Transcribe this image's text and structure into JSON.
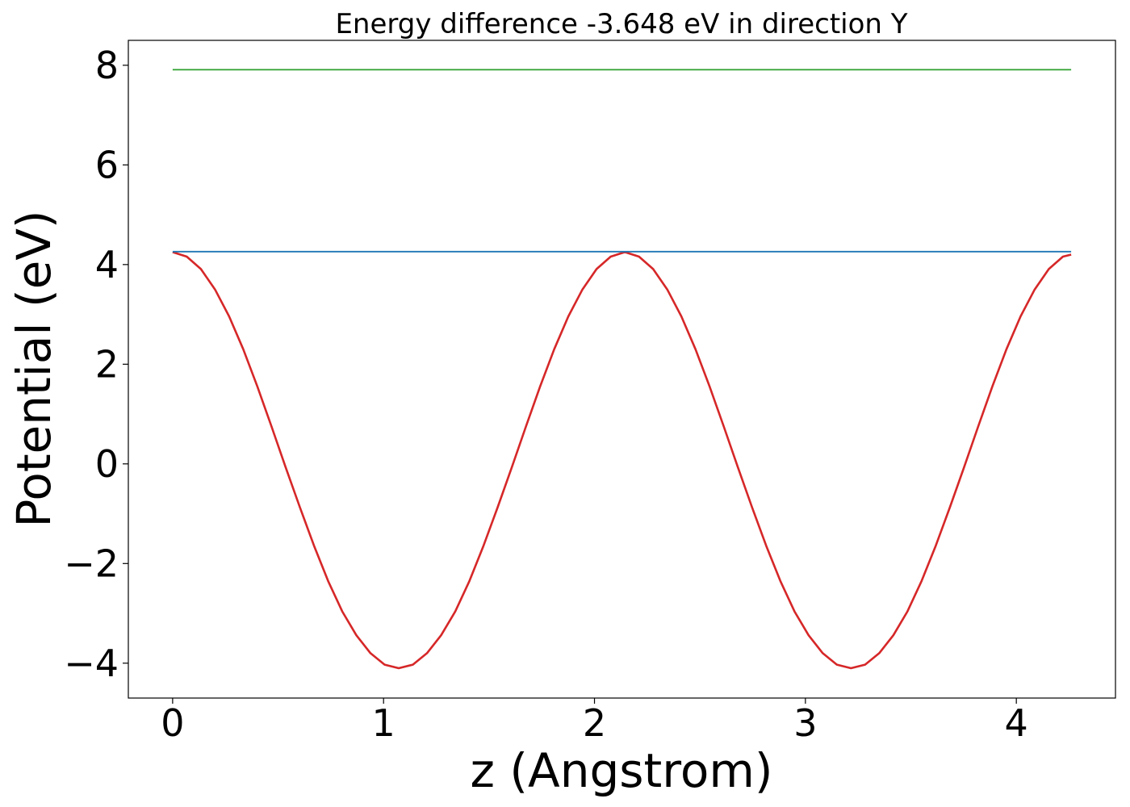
{
  "chart_data": {
    "type": "line",
    "title": "Energy difference -3.648 eV in direction Y",
    "xlabel": "z (Angstrom)",
    "ylabel": "Potential (eV)",
    "xlim": [
      -0.21,
      4.47
    ],
    "ylim": [
      -4.7,
      8.5
    ],
    "xticks": [
      0,
      1,
      2,
      3,
      4
    ],
    "xtick_labels": [
      "0",
      "1",
      "2",
      "3",
      "4"
    ],
    "yticks": [
      -4,
      -2,
      0,
      2,
      4,
      6,
      8
    ],
    "ytick_labels": [
      "−4",
      "−2",
      "0",
      "2",
      "4",
      "6",
      "8"
    ],
    "grid": false,
    "series": [
      {
        "color": "#d62728",
        "x": [
          0.0,
          0.067,
          0.134,
          0.201,
          0.268,
          0.335,
          0.402,
          0.469,
          0.536,
          0.603,
          0.67,
          0.737,
          0.804,
          0.871,
          0.938,
          1.005,
          1.072,
          1.139,
          1.206,
          1.273,
          1.34,
          1.407,
          1.474,
          1.541,
          1.608,
          1.675,
          1.742,
          1.809,
          1.876,
          1.943,
          2.01,
          2.077,
          2.144,
          2.211,
          2.278,
          2.345,
          2.412,
          2.479,
          2.546,
          2.613,
          2.68,
          2.747,
          2.814,
          2.881,
          2.948,
          3.015,
          3.082,
          3.149,
          3.216,
          3.283,
          3.35,
          3.417,
          3.484,
          3.551,
          3.618,
          3.685,
          3.752,
          3.819,
          3.886,
          3.953,
          4.02,
          4.087,
          4.154,
          4.221,
          4.26
        ],
        "y": [
          4.25,
          4.16,
          3.91,
          3.5,
          2.96,
          2.3,
          1.55,
          0.75,
          -0.07,
          -0.87,
          -1.64,
          -2.35,
          -2.96,
          -3.44,
          -3.8,
          -4.03,
          -4.1,
          -4.03,
          -3.8,
          -3.44,
          -2.96,
          -2.35,
          -1.64,
          -0.87,
          -0.07,
          0.75,
          1.55,
          2.3,
          2.96,
          3.5,
          3.91,
          4.16,
          4.25,
          4.16,
          3.91,
          3.5,
          2.96,
          2.3,
          1.55,
          0.75,
          -0.07,
          -0.87,
          -1.64,
          -2.35,
          -2.96,
          -3.44,
          -3.8,
          -4.03,
          -4.1,
          -4.03,
          -3.8,
          -3.44,
          -2.96,
          -2.35,
          -1.64,
          -0.87,
          -0.07,
          0.75,
          1.55,
          2.3,
          2.96,
          3.5,
          3.91,
          4.16,
          4.2
        ]
      },
      {
        "color": "#1f77b4",
        "x": [
          0.0,
          4.26
        ],
        "y": [
          4.26,
          4.26
        ]
      },
      {
        "color": "#2ca02c",
        "x": [
          0.0,
          4.26
        ],
        "y": [
          7.91,
          7.91
        ]
      }
    ]
  }
}
